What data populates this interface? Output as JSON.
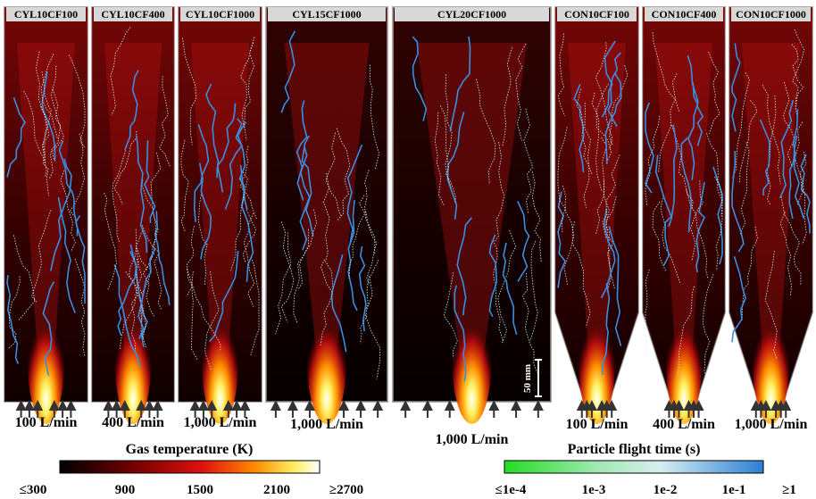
{
  "panels": [
    {
      "label": "CYL10CF100",
      "flow": "100 L/min"
    },
    {
      "label": "CYL10CF400",
      "flow": "400 L/min"
    },
    {
      "label": "CYL10CF1000",
      "flow": "1,000 L/min"
    },
    {
      "label": "CYL15CF1000",
      "flow": "1,000 L/min"
    },
    {
      "label": "CYL20CF1000",
      "flow": "1,000 L/min"
    },
    {
      "label": "CON10CF100",
      "flow": "100 L/min"
    },
    {
      "label": "CON10CF400",
      "flow": "400 L/min"
    },
    {
      "label": "CON10CF1000",
      "flow": "1,000 L/min"
    }
  ],
  "scale_bar": "50 mm",
  "colorbars": [
    {
      "title": "Gas temperature (K)",
      "ticks": [
        "≤300",
        "900",
        "1500",
        "2100",
        "≥2700"
      ]
    },
    {
      "title": "Particle flight time (s)",
      "ticks": [
        "≤1e-4",
        "1e-3",
        "1e-2",
        "1e-1",
        "≥1"
      ]
    }
  ]
}
